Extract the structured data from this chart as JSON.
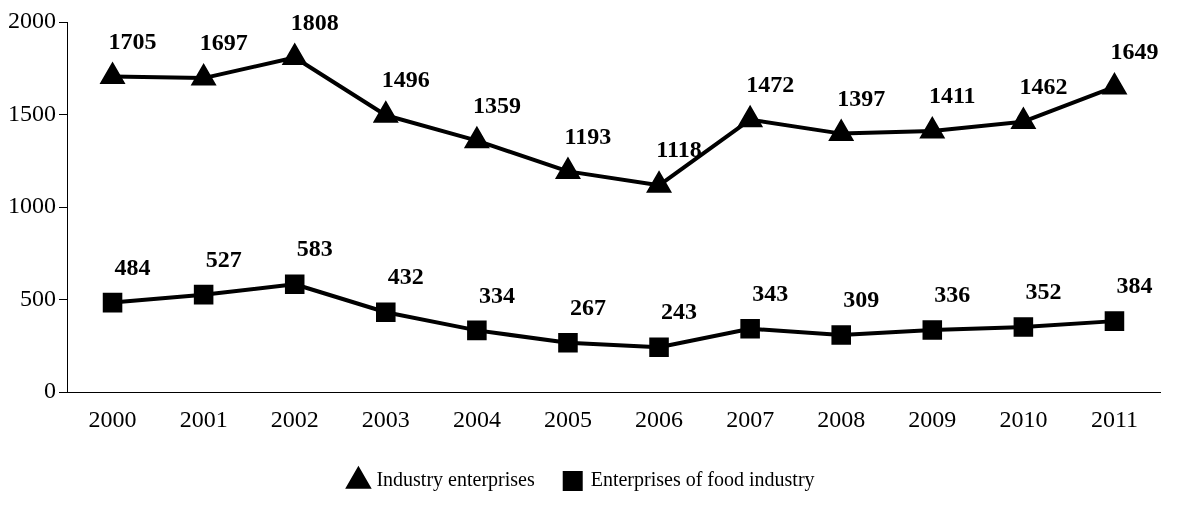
{
  "chart_data": {
    "type": "line",
    "categories": [
      "2000",
      "2001",
      "2002",
      "2003",
      "2004",
      "2005",
      "2006",
      "2007",
      "2008",
      "2009",
      "2010",
      "2011"
    ],
    "series": [
      {
        "name": "Industry enterprises",
        "color": "#000000",
        "marker": "triangle",
        "values": [
          1705,
          1697,
          1808,
          1496,
          1359,
          1193,
          1118,
          1472,
          1397,
          1411,
          1462,
          1649
        ]
      },
      {
        "name": "Enterprises of food industry",
        "color": "#000000",
        "marker": "square",
        "values": [
          484,
          527,
          583,
          432,
          334,
          267,
          243,
          343,
          309,
          336,
          352,
          384
        ]
      }
    ],
    "ylim": [
      0,
      2000
    ],
    "yticks": [
      0,
      500,
      1000,
      1500,
      2000
    ],
    "grid": false,
    "legend": "bottom",
    "data_labels": true,
    "line_style": "solid"
  }
}
